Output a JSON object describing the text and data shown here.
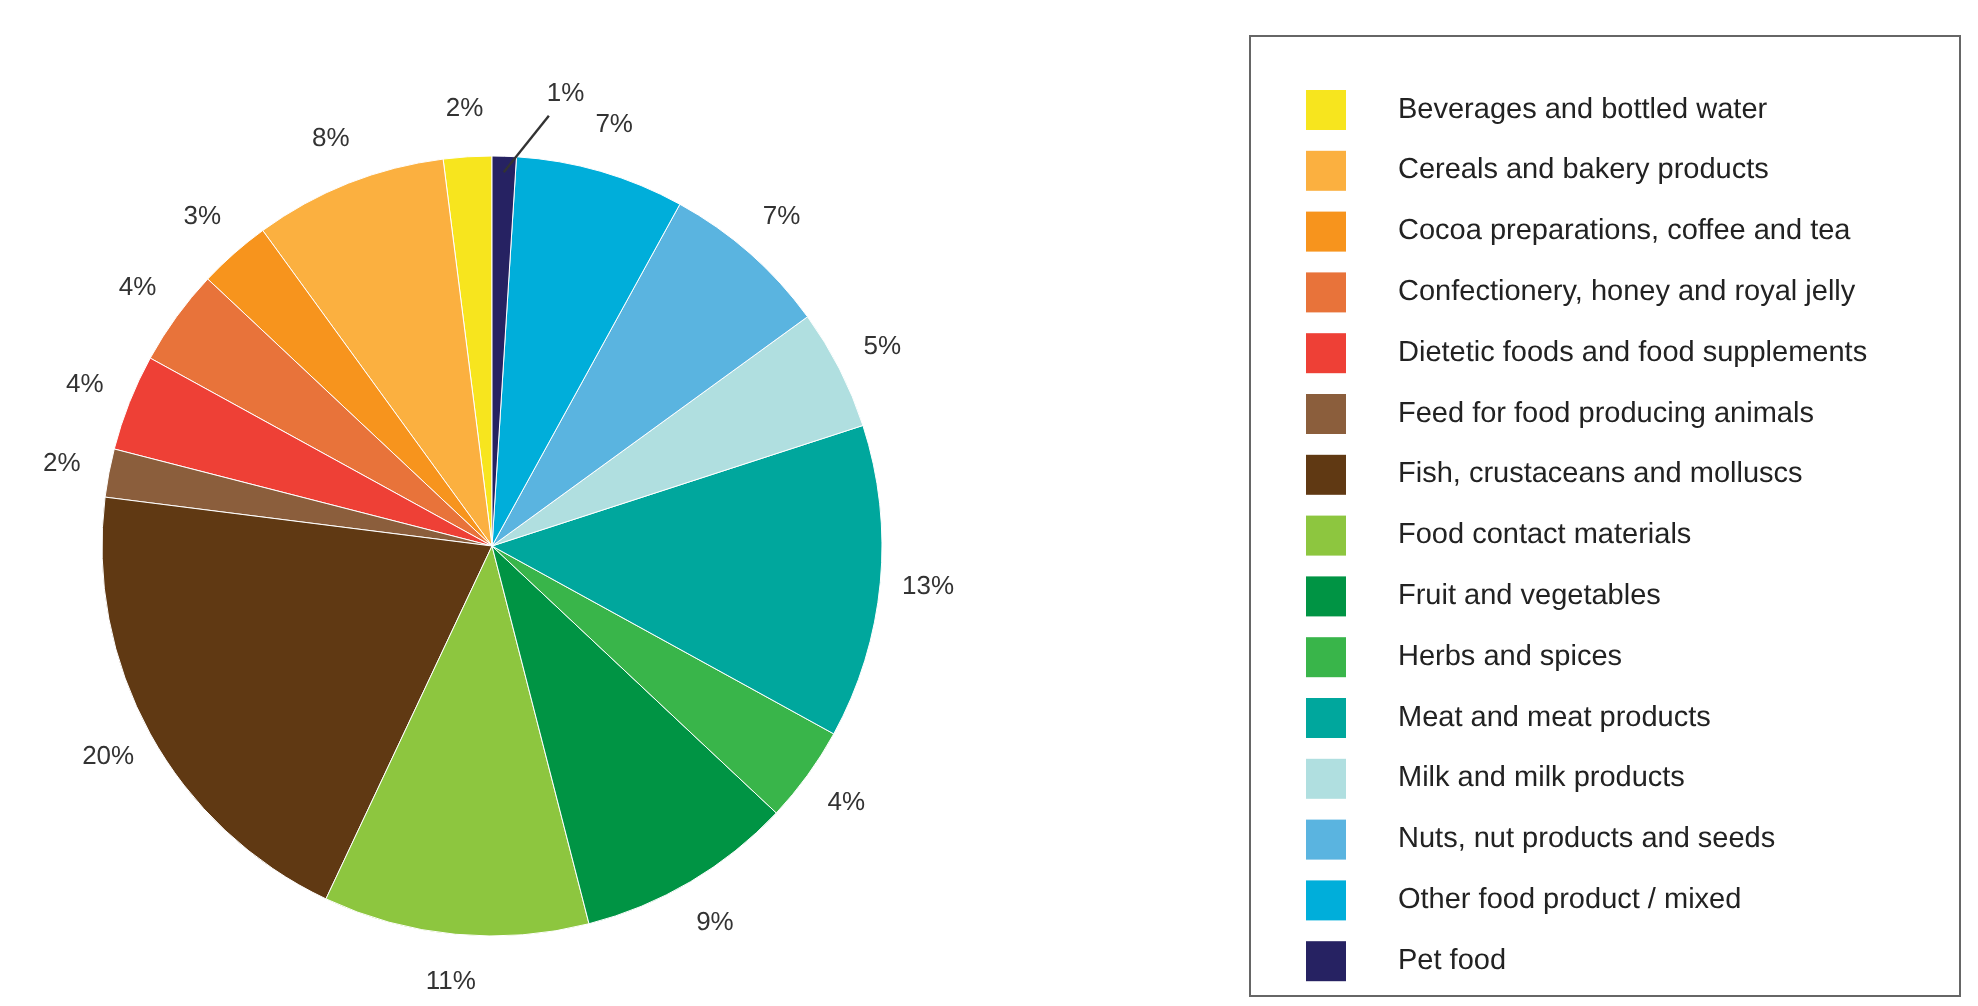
{
  "chart_data": {
    "type": "pie",
    "categories": [
      "Beverages and bottled water",
      "Cereals and bakery products",
      "Cocoa preparations, coffee and tea",
      "Confectionery, honey and royal jelly",
      "Dietetic foods and food supplements",
      "Feed for food producing animals",
      "Fish, crustaceans and molluscs",
      "Food contact materials",
      "Fruit and vegetables",
      "Herbs and spices",
      "Meat and meat products",
      "Milk and milk products",
      "Nuts, nut products and seeds",
      "Other food product / mixed",
      "Pet food"
    ],
    "values": [
      2,
      8,
      3,
      4,
      4,
      2,
      20,
      11,
      9,
      4,
      13,
      5,
      7,
      7,
      1
    ],
    "value_labels": [
      "2%",
      "8%",
      "3%",
      "4%",
      "4%",
      "2%",
      "20%",
      "11%",
      "9%",
      "4%",
      "13%",
      "5%",
      "7%",
      "7%",
      "1%"
    ],
    "colors": [
      "#f7e51e",
      "#fbb040",
      "#f7941d",
      "#e8733a",
      "#ee4036",
      "#8b5e3c",
      "#603913",
      "#8dc63f",
      "#009444",
      "#39b54a",
      "#00a79d",
      "#b0dfe0",
      "#5ab4e0",
      "#00aeda",
      "#262262"
    ],
    "legend": "right"
  }
}
